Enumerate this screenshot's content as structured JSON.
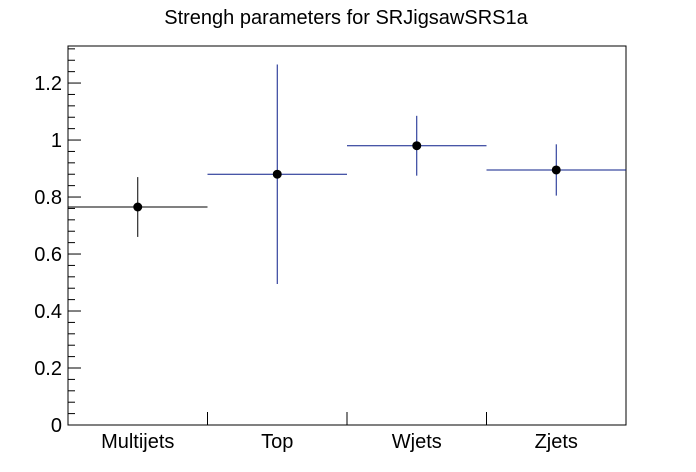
{
  "chart_data": {
    "type": "scatter",
    "title": "Strengh parameters for SRJigsawSRS1a",
    "xlabel": "",
    "ylabel": "",
    "categories": [
      "Multijets",
      "Top",
      "Wjets",
      "Zjets"
    ],
    "ylim": [
      0,
      1.33
    ],
    "y_ticks": [
      0,
      0.2,
      0.4,
      0.6,
      0.8,
      1,
      1.2
    ],
    "y_tick_labels": [
      "0",
      "0.2",
      "0.4",
      "0.6",
      "0.8",
      "1",
      "1.2"
    ],
    "grid": false,
    "points": [
      {
        "category": "Multijets",
        "value": 0.765,
        "err_low": 0.105,
        "err_high": 0.105,
        "color": "#000000"
      },
      {
        "category": "Top",
        "value": 0.88,
        "err_low": 0.385,
        "err_high": 0.385,
        "color": "#0b1f8a"
      },
      {
        "category": "Wjets",
        "value": 0.98,
        "err_low": 0.105,
        "err_high": 0.105,
        "color": "#0b1f8a"
      },
      {
        "category": "Zjets",
        "value": 0.895,
        "err_low": 0.09,
        "err_high": 0.09,
        "color": "#0b1f8a"
      }
    ]
  }
}
